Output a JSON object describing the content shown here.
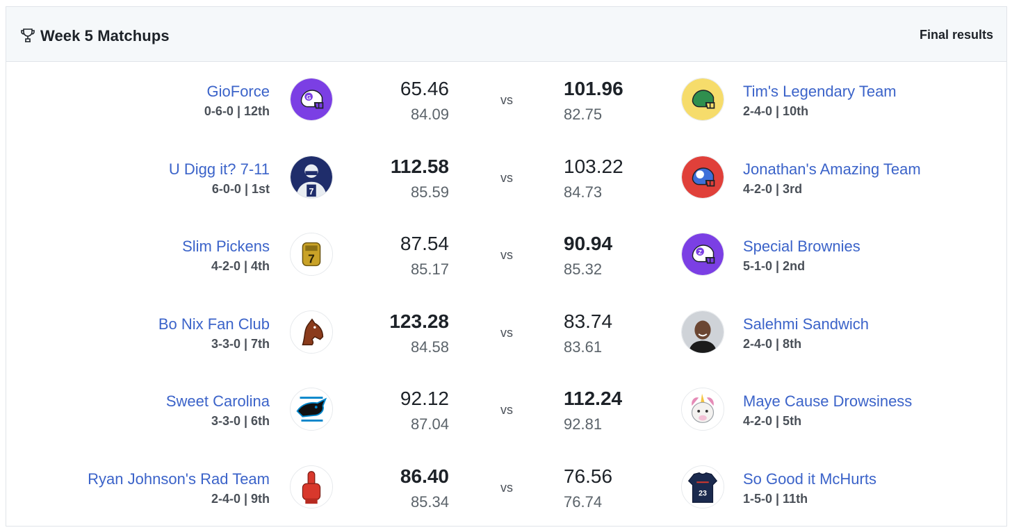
{
  "header": {
    "title": "Week 5 Matchups",
    "status": "Final results",
    "icon": "trophy-icon"
  },
  "vs_label": "vs",
  "matchups": [
    {
      "left": {
        "name": "GioForce",
        "record": "0-6-0 | 12th",
        "score": "65.46",
        "projected": "84.09",
        "avatar": "helmet-purple-icon",
        "color": "#7b3fe4",
        "letter": "G"
      },
      "right": {
        "name": "Tim's Legendary Team",
        "record": "2-4-0 | 10th",
        "score": "101.96",
        "projected": "82.75",
        "avatar": "helmet-green-icon",
        "color": "#2f8f4e",
        "bg": "#f6dc6b"
      },
      "winner": "right"
    },
    {
      "left": {
        "name": "U Digg it? 7-11",
        "record": "6-0-0 | 1st",
        "score": "112.58",
        "projected": "85.59",
        "avatar": "player-photo-avatar",
        "color": "#1f2d6b"
      },
      "right": {
        "name": "Jonathan's Amazing Team",
        "record": "4-2-0 | 3rd",
        "score": "103.22",
        "projected": "84.73",
        "avatar": "helmet-blue-icon",
        "color": "#3f6fd9",
        "bg": "#e0403a",
        "letter": "J"
      },
      "winner": "left"
    },
    {
      "left": {
        "name": "Slim Pickens",
        "record": "4-2-0 | 4th",
        "score": "87.54",
        "projected": "85.17",
        "avatar": "championship-ring-icon",
        "color": "#c9a227"
      },
      "right": {
        "name": "Special Brownies",
        "record": "5-1-0 | 2nd",
        "score": "90.94",
        "projected": "85.32",
        "avatar": "helmet-purple-icon",
        "color": "#7b3fe4",
        "letter": "Z"
      },
      "winner": "right"
    },
    {
      "left": {
        "name": "Bo Nix Fan Club",
        "record": "3-3-0 | 7th",
        "score": "123.28",
        "projected": "84.58",
        "avatar": "horse-head-icon",
        "color": "#8a3b1c"
      },
      "right": {
        "name": "Salehmi Sandwich",
        "record": "2-4-0 | 8th",
        "score": "83.74",
        "projected": "83.61",
        "avatar": "person-photo-avatar",
        "color": "#6b4632"
      },
      "winner": "left"
    },
    {
      "left": {
        "name": "Sweet Carolina",
        "record": "3-3-0 | 6th",
        "score": "92.12",
        "projected": "87.04",
        "avatar": "panther-logo-icon",
        "color": "#0085ca"
      },
      "right": {
        "name": "Maye Cause Drowsiness",
        "record": "4-2-0 | 5th",
        "score": "112.24",
        "projected": "92.81",
        "avatar": "unicorn-icon",
        "color": "#e58bb7"
      },
      "winner": "right"
    },
    {
      "left": {
        "name": "Ryan Johnson's Rad Team",
        "record": "2-4-0 | 9th",
        "score": "86.40",
        "projected": "85.34",
        "avatar": "foam-finger-icon",
        "color": "#d8382c"
      },
      "right": {
        "name": "So Good it McHurts",
        "record": "1-5-0 | 11th",
        "score": "76.56",
        "projected": "76.74",
        "avatar": "jersey-icon",
        "color": "#1b2a4e"
      },
      "winner": "left"
    }
  ]
}
